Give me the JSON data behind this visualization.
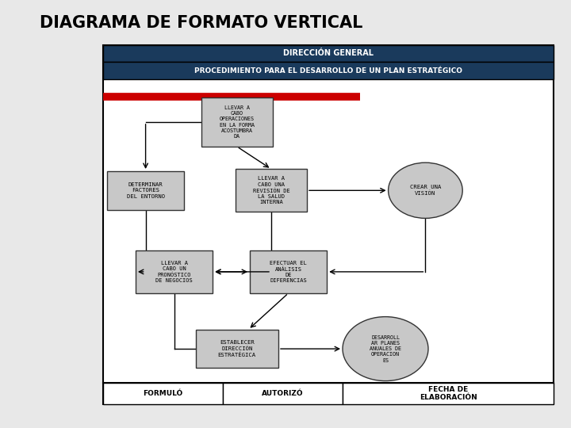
{
  "title": "DIAGRAMA DE FORMATO VERTICAL",
  "header1": "DIRECCIÓN GENERAL",
  "header2": "PROCEDIMIENTO PARA EL DESARROLLO DE UN PLAN ESTRATÉGICO",
  "bg_color": "#e8e8e8",
  "header1_bg": "#1a3a5c",
  "header1_fg": "white",
  "header2_bg": "#1a3a5c",
  "header2_fg": "white",
  "box_fill": "#c8c8c8",
  "box_edge": "#333333",
  "outer_box": "#000000",
  "red_line_color": "#cc0000",
  "footer_labels": [
    "FORMULÓ",
    "AUTORIZÓ",
    "FECHA DE\nELABORACIÓN"
  ]
}
